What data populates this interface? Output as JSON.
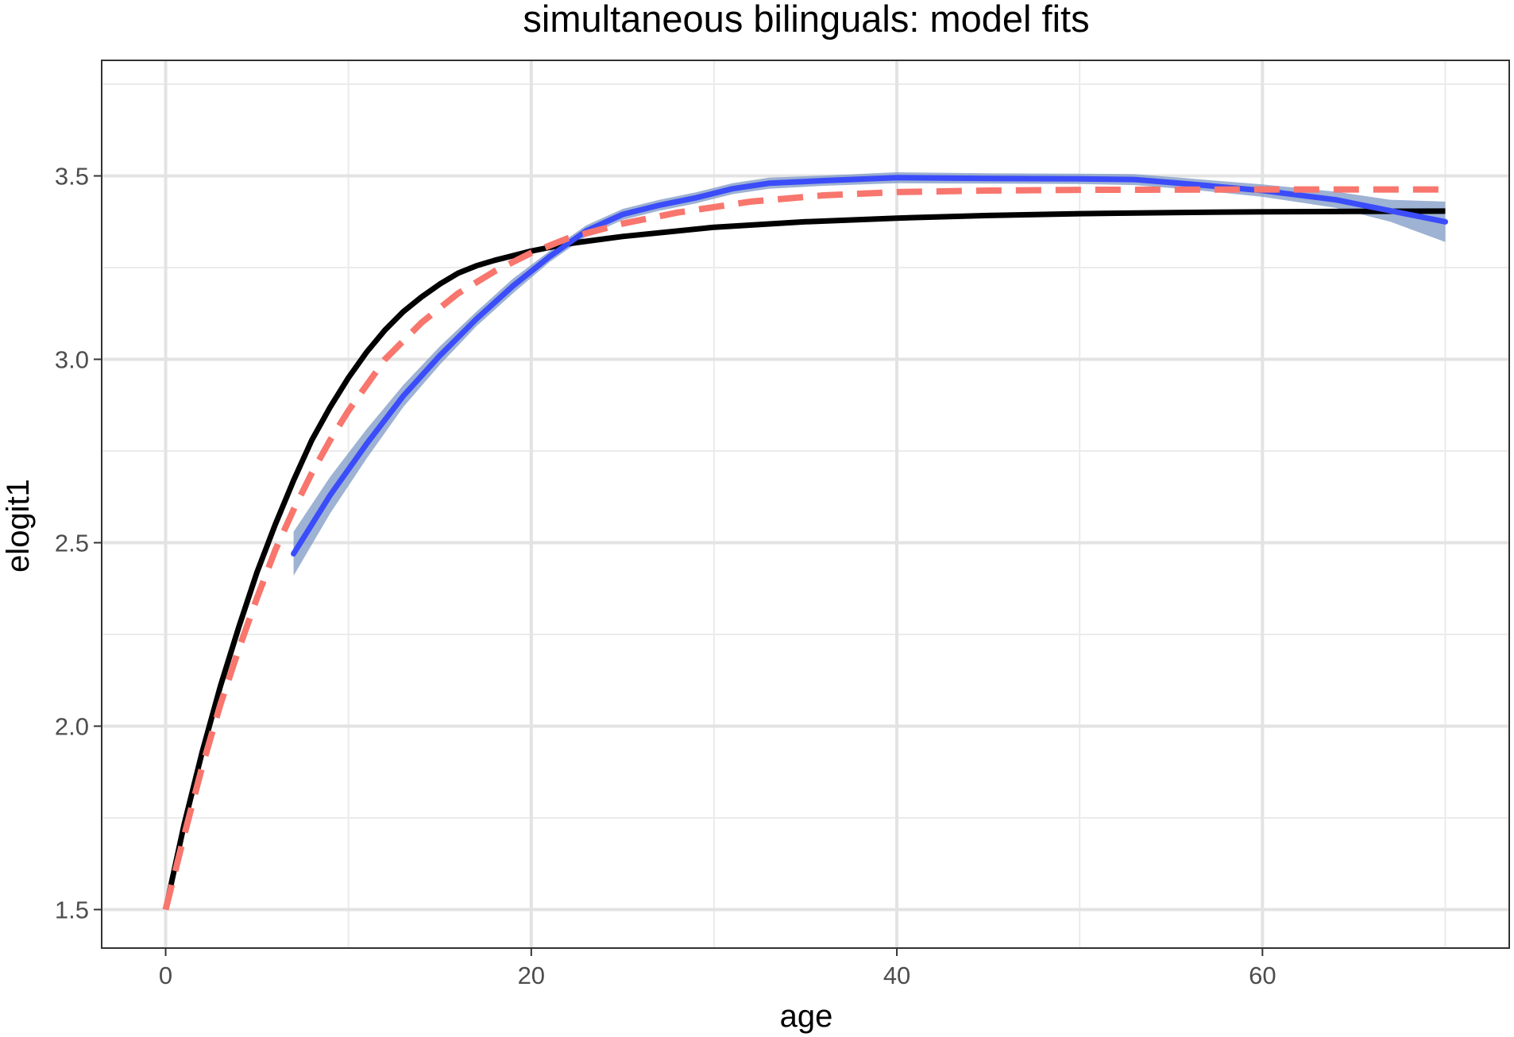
{
  "chart_data": {
    "type": "line",
    "title": "simultaneous bilinguals: model fits",
    "xlabel": "age",
    "ylabel": "elogit1",
    "xlim": [
      -3.5,
      73.5
    ],
    "ylim": [
      1.395,
      3.815
    ],
    "x_ticks": [
      0,
      20,
      40,
      60
    ],
    "x_tick_labels": [
      "0",
      "20",
      "40",
      "60"
    ],
    "y_ticks": [
      1.5,
      2.0,
      2.5,
      3.0,
      3.5
    ],
    "y_tick_labels": [
      "1.5",
      "2.0",
      "2.5",
      "3.0",
      "3.5"
    ],
    "x_minor_ticks": [
      10,
      30,
      50,
      70
    ],
    "y_minor_ticks": [
      1.75,
      2.25,
      2.75,
      3.25,
      3.75
    ],
    "grid": true,
    "legend": "none",
    "series": [
      {
        "style": "solid",
        "color": "#000000",
        "points": [
          [
            0,
            1.5
          ],
          [
            1,
            1.73
          ],
          [
            2,
            1.93
          ],
          [
            3,
            2.11
          ],
          [
            4,
            2.27
          ],
          [
            5,
            2.42
          ],
          [
            6,
            2.55
          ],
          [
            7,
            2.67
          ],
          [
            8,
            2.78
          ],
          [
            9,
            2.87
          ],
          [
            10,
            2.95
          ],
          [
            11,
            3.02
          ],
          [
            12,
            3.08
          ],
          [
            13,
            3.13
          ],
          [
            14,
            3.17
          ],
          [
            15,
            3.205
          ],
          [
            16,
            3.235
          ],
          [
            17,
            3.255
          ],
          [
            18,
            3.27
          ],
          [
            20,
            3.295
          ],
          [
            22,
            3.315
          ],
          [
            25,
            3.335
          ],
          [
            30,
            3.36
          ],
          [
            35,
            3.375
          ],
          [
            40,
            3.385
          ],
          [
            45,
            3.392
          ],
          [
            50,
            3.397
          ],
          [
            55,
            3.4
          ],
          [
            60,
            3.402
          ],
          [
            65,
            3.403
          ],
          [
            70,
            3.404
          ]
        ]
      },
      {
        "style": "dashed",
        "color": "#f8766d",
        "points": [
          [
            0,
            1.5
          ],
          [
            1,
            1.7
          ],
          [
            2,
            1.89
          ],
          [
            3,
            2.06
          ],
          [
            4,
            2.21
          ],
          [
            5,
            2.35
          ],
          [
            6,
            2.48
          ],
          [
            7,
            2.59
          ],
          [
            8,
            2.69
          ],
          [
            9,
            2.78
          ],
          [
            10,
            2.86
          ],
          [
            12,
            3.0
          ],
          [
            14,
            3.1
          ],
          [
            16,
            3.18
          ],
          [
            18,
            3.24
          ],
          [
            20,
            3.29
          ],
          [
            22,
            3.33
          ],
          [
            25,
            3.37
          ],
          [
            28,
            3.4
          ],
          [
            32,
            3.43
          ],
          [
            36,
            3.447
          ],
          [
            40,
            3.456
          ],
          [
            45,
            3.46
          ],
          [
            50,
            3.462
          ],
          [
            60,
            3.463
          ],
          [
            70,
            3.463
          ]
        ]
      },
      {
        "style": "smooth",
        "color": "#3b4cfa",
        "band_color": "#7d98c4",
        "points": [
          [
            7,
            2.47
          ],
          [
            9,
            2.63
          ],
          [
            11,
            2.77
          ],
          [
            13,
            2.9
          ],
          [
            15,
            3.01
          ],
          [
            17,
            3.11
          ],
          [
            19,
            3.2
          ],
          [
            21,
            3.28
          ],
          [
            23,
            3.35
          ],
          [
            25,
            3.395
          ],
          [
            27,
            3.42
          ],
          [
            29,
            3.44
          ],
          [
            31,
            3.465
          ],
          [
            33,
            3.48
          ],
          [
            36,
            3.487
          ],
          [
            40,
            3.495
          ],
          [
            45,
            3.493
          ],
          [
            50,
            3.492
          ],
          [
            53,
            3.49
          ],
          [
            56,
            3.478
          ],
          [
            60,
            3.46
          ],
          [
            64,
            3.435
          ],
          [
            67,
            3.405
          ],
          [
            70,
            3.375
          ]
        ],
        "band_lower": [
          [
            7,
            2.41
          ],
          [
            9,
            2.58
          ],
          [
            11,
            2.73
          ],
          [
            13,
            2.87
          ],
          [
            15,
            2.985
          ],
          [
            17,
            3.09
          ],
          [
            19,
            3.18
          ],
          [
            21,
            3.265
          ],
          [
            23,
            3.335
          ],
          [
            25,
            3.38
          ],
          [
            27,
            3.405
          ],
          [
            29,
            3.425
          ],
          [
            31,
            3.45
          ],
          [
            33,
            3.465
          ],
          [
            36,
            3.473
          ],
          [
            40,
            3.48
          ],
          [
            45,
            3.479
          ],
          [
            50,
            3.478
          ],
          [
            53,
            3.475
          ],
          [
            56,
            3.463
          ],
          [
            60,
            3.443
          ],
          [
            64,
            3.413
          ],
          [
            67,
            3.375
          ],
          [
            70,
            3.32
          ]
        ],
        "band_upper": [
          [
            7,
            2.53
          ],
          [
            9,
            2.68
          ],
          [
            11,
            2.81
          ],
          [
            13,
            2.93
          ],
          [
            15,
            3.035
          ],
          [
            17,
            3.13
          ],
          [
            19,
            3.22
          ],
          [
            21,
            3.295
          ],
          [
            23,
            3.365
          ],
          [
            25,
            3.41
          ],
          [
            27,
            3.435
          ],
          [
            29,
            3.455
          ],
          [
            31,
            3.48
          ],
          [
            33,
            3.495
          ],
          [
            36,
            3.501
          ],
          [
            40,
            3.51
          ],
          [
            45,
            3.507
          ],
          [
            50,
            3.506
          ],
          [
            53,
            3.505
          ],
          [
            56,
            3.493
          ],
          [
            60,
            3.477
          ],
          [
            64,
            3.457
          ],
          [
            67,
            3.435
          ],
          [
            70,
            3.43
          ]
        ]
      }
    ]
  }
}
